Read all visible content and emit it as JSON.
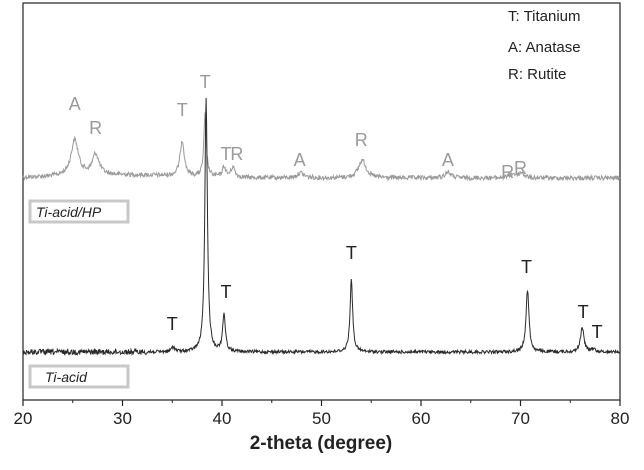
{
  "chart_data": {
    "type": "line",
    "xlabel": "2-theta (degree)",
    "xlim": [
      20,
      80
    ],
    "xticks": [
      20,
      30,
      40,
      50,
      60,
      70,
      80
    ],
    "legend": {
      "placement": "top-right",
      "entries": [
        "T: Titanium",
        "A: Anatase",
        "R: Rutite"
      ]
    },
    "series": [
      {
        "name": "Ti-acid/HP",
        "color": "#9a9a9a",
        "baseline": 0.0,
        "peaks": [
          {
            "x": 25.2,
            "height": 0.36,
            "width": 0.45
          },
          {
            "x": 27.3,
            "height": 0.21,
            "width": 0.4
          },
          {
            "x": 36.0,
            "height": 0.36,
            "width": 0.25
          },
          {
            "x": 38.3,
            "height": 0.62,
            "width": 0.15
          },
          {
            "x": 40.2,
            "height": 0.1,
            "width": 0.2
          },
          {
            "x": 41.1,
            "height": 0.1,
            "width": 0.25
          },
          {
            "x": 47.9,
            "height": 0.05,
            "width": 0.4
          },
          {
            "x": 54.1,
            "height": 0.18,
            "width": 0.45
          },
          {
            "x": 62.7,
            "height": 0.06,
            "width": 0.35
          },
          {
            "x": 69.2,
            "height": 0.04,
            "width": 0.4
          },
          {
            "x": 70.1,
            "height": 0.05,
            "width": 0.3
          }
        ],
        "annotations": [
          {
            "label": "A",
            "x": 25.2
          },
          {
            "label": "R",
            "x": 27.3
          },
          {
            "label": "T",
            "x": 36.0
          },
          {
            "label": "T",
            "x": 38.3
          },
          {
            "label": "T",
            "x": 40.4
          },
          {
            "label": "R",
            "x": 41.5
          },
          {
            "label": "A",
            "x": 47.8
          },
          {
            "label": "R",
            "x": 54.0
          },
          {
            "label": "A",
            "x": 62.7
          },
          {
            "label": "R",
            "x": 68.7
          },
          {
            "label": "R",
            "x": 70.0
          }
        ]
      },
      {
        "name": "Ti-acid",
        "color": "#2a2a2a",
        "baseline": 0.0,
        "peaks": [
          {
            "x": 35.1,
            "height": 0.05,
            "width": 0.2
          },
          {
            "x": 38.4,
            "height": 2.55,
            "width": 0.15
          },
          {
            "x": 40.2,
            "height": 0.38,
            "width": 0.16
          },
          {
            "x": 53.0,
            "height": 0.73,
            "width": 0.16
          },
          {
            "x": 70.7,
            "height": 0.62,
            "width": 0.18
          },
          {
            "x": 76.2,
            "height": 0.25,
            "width": 0.2
          },
          {
            "x": 77.3,
            "height": 0.03,
            "width": 0.25
          }
        ],
        "annotations": [
          {
            "label": "T",
            "x": 35.0
          },
          {
            "label": "T",
            "x": 40.4
          },
          {
            "label": "T",
            "x": 53.0
          },
          {
            "label": "T",
            "x": 70.6
          },
          {
            "label": "T",
            "x": 76.3
          },
          {
            "label": "T",
            "x": 77.7
          }
        ]
      }
    ]
  }
}
